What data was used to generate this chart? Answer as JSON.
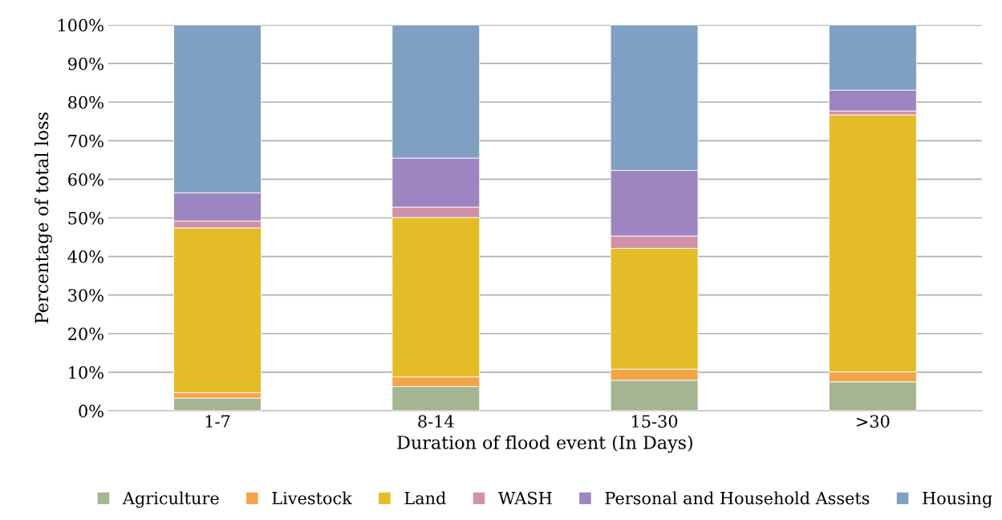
{
  "chart_data": {
    "type": "bar",
    "stacked": true,
    "categories": [
      "1-7",
      "8-14",
      "15-30",
      ">30"
    ],
    "xlabel": "Duration of flood event (In Days)",
    "ylabel": "Percentage of total loss",
    "ylim": [
      0,
      100
    ],
    "yticks": [
      {
        "value": 0,
        "label": "0%"
      },
      {
        "value": 10,
        "label": "10%"
      },
      {
        "value": 20,
        "label": "20%"
      },
      {
        "value": 30,
        "label": "30%"
      },
      {
        "value": 40,
        "label": "40%"
      },
      {
        "value": 50,
        "label": "50%"
      },
      {
        "value": 60,
        "label": "60%"
      },
      {
        "value": 70,
        "label": "70%"
      },
      {
        "value": 80,
        "label": "80%"
      },
      {
        "value": 90,
        "label": "90%"
      },
      {
        "value": 100,
        "label": "100%"
      }
    ],
    "grid": "y",
    "legend": "bottom",
    "series": [
      {
        "name": "Agriculture",
        "color": "#a5b592",
        "values": [
          3.3,
          6.3,
          7.9,
          7.5
        ]
      },
      {
        "name": "Livestock",
        "color": "#f3a447",
        "values": [
          1.4,
          2.5,
          2.9,
          2.6
        ]
      },
      {
        "name": "Land",
        "color": "#e4bc28",
        "values": [
          42.7,
          41.3,
          31.3,
          66.6
        ]
      },
      {
        "name": "WASH",
        "color": "#d092a7",
        "values": [
          1.8,
          2.7,
          3.2,
          1.0
        ]
      },
      {
        "name": "Personal and Household Assets",
        "color": "#9c85c0",
        "values": [
          7.3,
          12.7,
          17.0,
          5.4
        ]
      },
      {
        "name": "Housing",
        "color": "#7f9fc3",
        "values": [
          43.5,
          34.5,
          37.7,
          16.9
        ]
      }
    ]
  }
}
